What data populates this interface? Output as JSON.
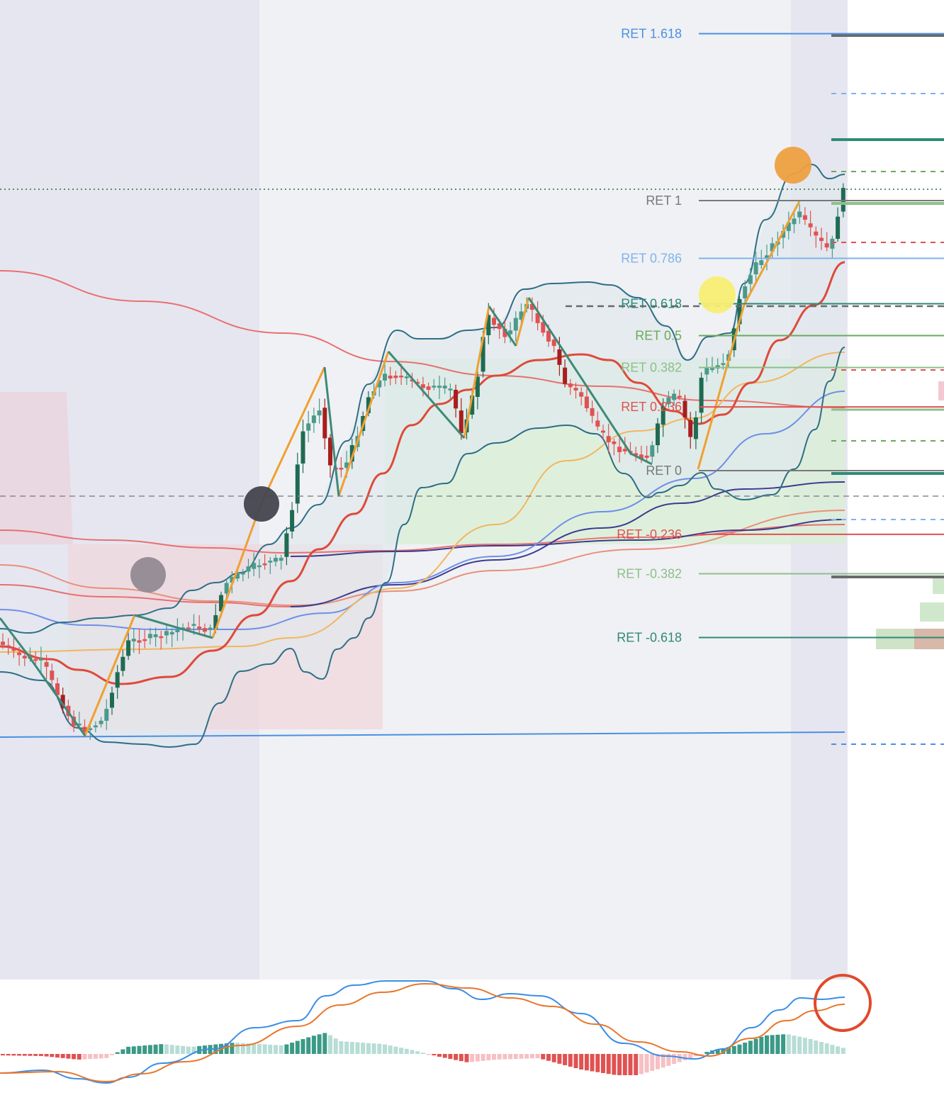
{
  "colors": {
    "session_shade": "#e6e6f1",
    "plot_bg": "#f0f1f4",
    "up_candle": "#4a9a8a",
    "up_candle_dark": "#1f6b52",
    "down_candle": "#e05252",
    "down_candle_dark": "#a81e1e",
    "zigzag": "#f0a030",
    "zigzag_down": "#3d8a78",
    "bollinger": "#2e6e86",
    "bollinger_fill": "#dfe8ec",
    "ma_fast": "#de4a3a",
    "ma_mid": "#f2b65e",
    "ma_slow": "#6f8fe8",
    "ma_long": "#3d3b8e",
    "ma_salmon": "#e8907a",
    "long_red": "#e87070",
    "support_line": "#4a90e2",
    "macd_line": "#3a8ee6",
    "macd_signal": "#e8762a",
    "hist_up_strong": "#3b9a86",
    "hist_up_weak": "#b7ddd5",
    "hist_down_strong": "#e05252",
    "hist_down_weak": "#f6c0c4",
    "callout_ring": "#e04a2a"
  },
  "chart_data": {
    "type": "candlestick",
    "title": "",
    "fib_levels": [
      {
        "label": "RET 1.618",
        "value": 1.618,
        "color": "#4a90e2"
      },
      {
        "label": "RET 1",
        "value": 1,
        "color": "#787878"
      },
      {
        "label": "RET 0.786",
        "value": 0.786,
        "color": "#7fb3ec"
      },
      {
        "label": "RET 0.618",
        "value": 0.618,
        "color": "#2e8a78"
      },
      {
        "label": "RET 0.5",
        "value": 0.5,
        "color": "#6aaa5a"
      },
      {
        "label": "RET 0.382",
        "value": 0.382,
        "color": "#8cc08a"
      },
      {
        "label": "RET 0.236",
        "value": 0.236,
        "color": "#e05252"
      },
      {
        "label": "RET 0",
        "value": 0,
        "color": "#787878"
      },
      {
        "label": "RET -0.236",
        "value": -0.236,
        "color": "#e05252"
      },
      {
        "label": "RET -0.382",
        "value": -0.382,
        "color": "#8cc08a"
      },
      {
        "label": "RET -0.618",
        "value": -0.618,
        "color": "#2e8a78"
      }
    ],
    "markers": [
      {
        "name": "gray-circle-marker",
        "color": "#948a94"
      },
      {
        "name": "dark-circle-marker",
        "color": "#45454f"
      },
      {
        "name": "yellow-circle-marker",
        "color": "#f7ee72"
      },
      {
        "name": "orange-circle-marker",
        "color": "#eda040"
      }
    ],
    "oscillator": {
      "type": "macd",
      "series": [
        "macd",
        "signal",
        "histogram"
      ]
    }
  }
}
